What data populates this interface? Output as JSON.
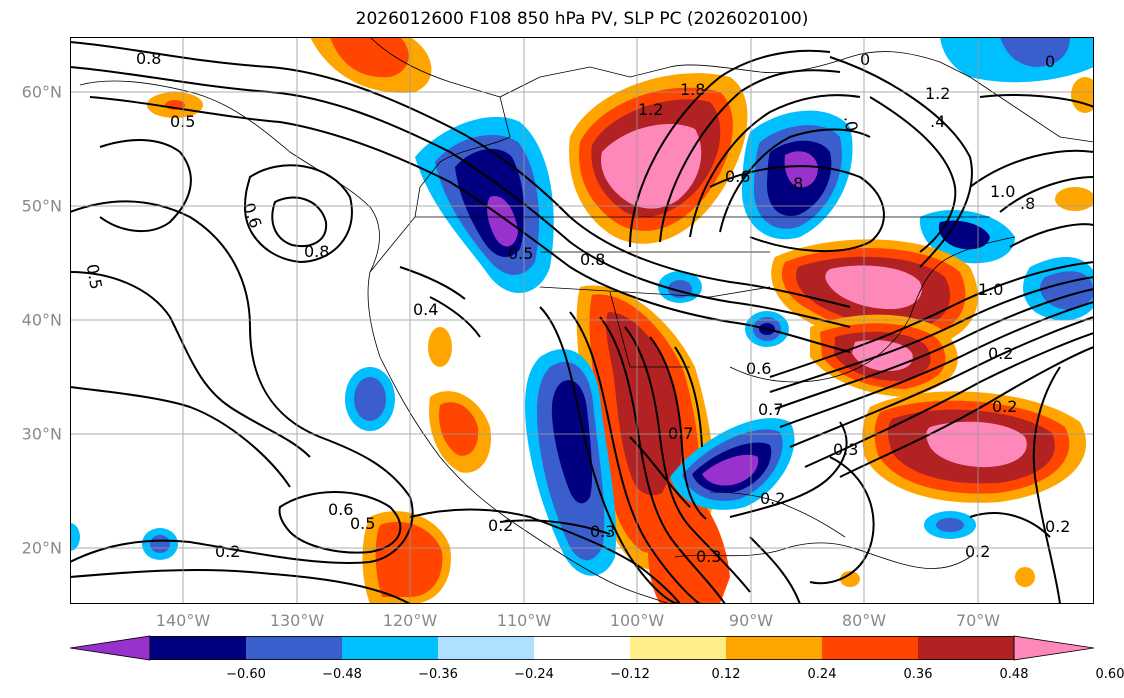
{
  "title": "2026012600 F108 850 hPa PV, SLP PC (2026020100)",
  "lat_labels": [
    "60°N",
    "50°N",
    "40°N",
    "30°N",
    "20°N"
  ],
  "lon_labels": [
    "140°W",
    "130°W",
    "120°W",
    "110°W",
    "100°W",
    "90°W",
    "80°W",
    "70°W"
  ],
  "colorbar": {
    "ticks": [
      "−0.60",
      "−0.48",
      "−0.36",
      "−0.24",
      "−0.12",
      "0.12",
      "0.24",
      "0.36",
      "0.48",
      "0.60"
    ],
    "colors": [
      "#9932cc",
      "#000080",
      "#3a5fcd",
      "#00bfff",
      "#b0e0ff",
      "#ffffff",
      "#ffee88",
      "#ffa500",
      "#ff4500",
      "#b22222",
      "#ff88bb"
    ]
  },
  "contour_labels": [
    "0.8",
    "0.5",
    "0.6",
    "0.8",
    "0.5",
    "0.6",
    "0.5",
    "0.2",
    "0.4",
    "0.5",
    "0.8",
    "1.2",
    "1.8",
    "0.6",
    ".8",
    ".0",
    "1.2",
    ".4",
    "1.0",
    ".8",
    "1.0",
    "0.2",
    "0.2",
    "0.7",
    "0.6",
    "0.3",
    "0.2",
    "0.3",
    "0.3",
    "0.2",
    "0.2",
    "0.2",
    "0.7",
    "0",
    "0"
  ]
}
